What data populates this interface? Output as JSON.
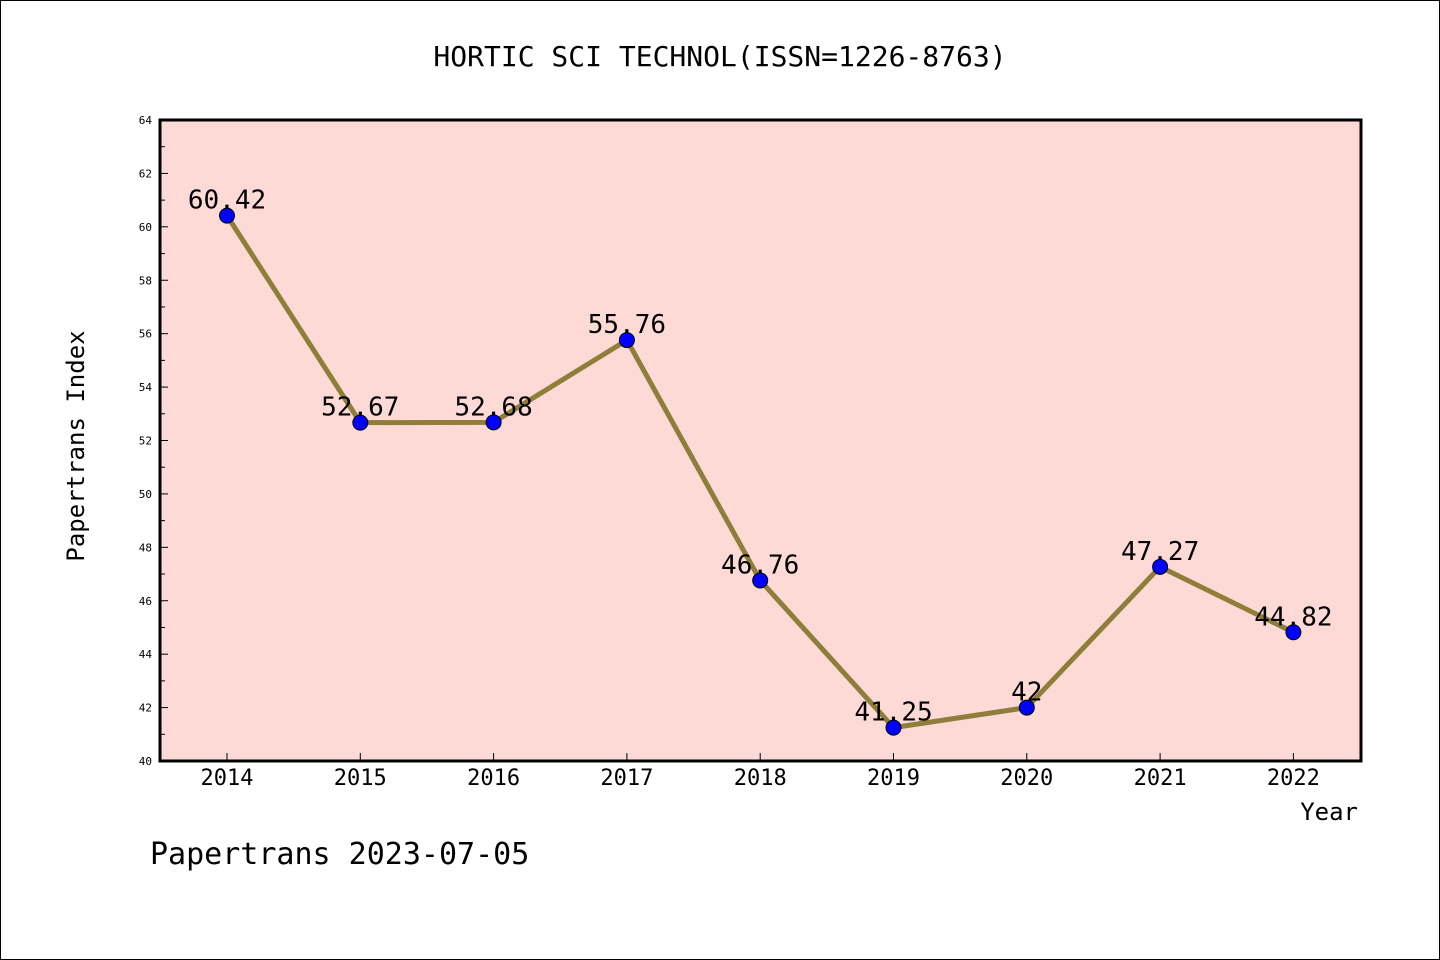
{
  "chart_data": {
    "type": "line",
    "title": "HORTIC SCI TECHNOL(ISSN=1226-8763)",
    "xlabel": "Year",
    "ylabel": "Papertrans Index",
    "footer": "Papertrans 2023-07-05",
    "categories": [
      "2014",
      "2015",
      "2016",
      "2017",
      "2018",
      "2019",
      "2020",
      "2021",
      "2022"
    ],
    "values": [
      60.42,
      52.67,
      52.68,
      55.76,
      46.76,
      41.25,
      42,
      47.27,
      44.82
    ],
    "data_labels": [
      "60.42",
      "52.67",
      "52.68",
      "55.76",
      "46.76",
      "41.25",
      "42",
      "47.27",
      "44.82"
    ],
    "ylim": [
      40,
      64
    ],
    "yticks": [
      40,
      42,
      44,
      46,
      48,
      50,
      52,
      54,
      56,
      58,
      60,
      62,
      64
    ],
    "grid": false,
    "legend": "none",
    "colors": {
      "plot_background": "#fddad6",
      "line": "#8f7e3a",
      "marker": "#0000ff"
    }
  }
}
